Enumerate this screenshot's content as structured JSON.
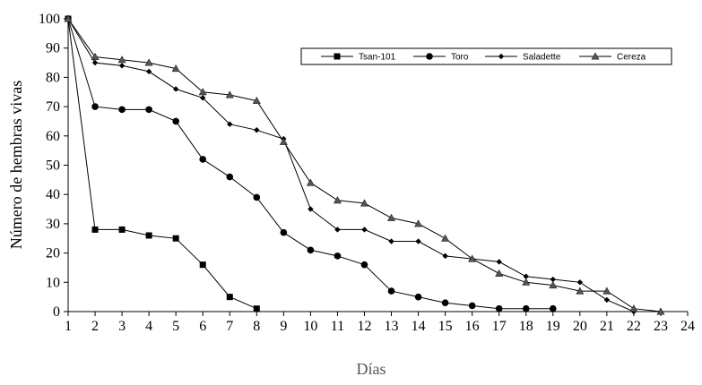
{
  "chart_data": {
    "type": "line",
    "xlabel": "Días",
    "ylabel": "Número de hembras vivas",
    "xlim": [
      1,
      24
    ],
    "ylim": [
      0,
      100
    ],
    "x_ticks": [
      "1",
      "2",
      "3",
      "4",
      "5",
      "6",
      "7",
      "8",
      "9",
      "10",
      "11",
      "12",
      "13",
      "14",
      "15",
      "16",
      "17",
      "18",
      "19",
      "20",
      "21",
      "22",
      "23",
      "24"
    ],
    "y_ticks": [
      "0",
      "10",
      "20",
      "30",
      "40",
      "50",
      "60",
      "70",
      "80",
      "90",
      "100"
    ],
    "grid": false,
    "legend_position": "top-right",
    "series": [
      {
        "name": "Tsan-101",
        "marker": "square",
        "x": [
          1,
          2,
          3,
          4,
          5,
          6,
          7,
          8
        ],
        "values": [
          100,
          28,
          28,
          26,
          25,
          16,
          5,
          1
        ]
      },
      {
        "name": "Toro",
        "marker": "circle",
        "x": [
          1,
          2,
          3,
          4,
          5,
          6,
          7,
          8,
          9,
          10,
          11,
          12,
          13,
          14,
          15,
          16,
          17,
          18,
          19
        ],
        "values": [
          100,
          70,
          69,
          69,
          65,
          52,
          46,
          39,
          27,
          21,
          19,
          16,
          7,
          5,
          3,
          2,
          1,
          1,
          1
        ]
      },
      {
        "name": "Saladette",
        "marker": "diamond",
        "x": [
          1,
          2,
          3,
          4,
          5,
          6,
          7,
          8,
          9,
          10,
          11,
          12,
          13,
          14,
          15,
          16,
          17,
          18,
          19,
          20,
          21,
          22
        ],
        "values": [
          100,
          85,
          84,
          82,
          76,
          73,
          64,
          62,
          59,
          35,
          28,
          28,
          24,
          24,
          19,
          18,
          17,
          12,
          11,
          10,
          4,
          0
        ]
      },
      {
        "name": "Cereza",
        "marker": "triangle",
        "x": [
          1,
          2,
          3,
          4,
          5,
          6,
          7,
          8,
          9,
          10,
          11,
          12,
          13,
          14,
          15,
          16,
          17,
          18,
          19,
          20,
          21,
          22,
          23
        ],
        "values": [
          100,
          87,
          86,
          85,
          83,
          75,
          74,
          72,
          58,
          44,
          38,
          37,
          32,
          30,
          25,
          18,
          13,
          10,
          9,
          7,
          7,
          1,
          0
        ]
      }
    ]
  }
}
